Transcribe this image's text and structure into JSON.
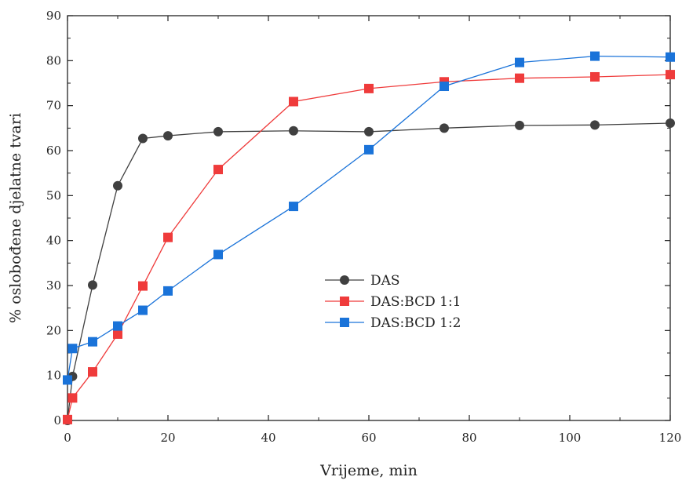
{
  "chart_data": {
    "type": "line",
    "title": "",
    "xlabel": "Vrijeme, min",
    "ylabel": "% oslobođene djelatne tvari",
    "xlim": [
      0,
      120
    ],
    "ylim": [
      0,
      90
    ],
    "x_ticks": [
      0,
      20,
      40,
      60,
      80,
      100,
      120
    ],
    "y_ticks": [
      0,
      10,
      20,
      30,
      40,
      50,
      60,
      70,
      80,
      90
    ],
    "grid": false,
    "legend_position": "center",
    "series": [
      {
        "name": "DAS",
        "color": "#404040",
        "marker": "circle",
        "x": [
          0,
          1,
          5,
          10,
          15,
          20,
          30,
          45,
          60,
          75,
          90,
          105,
          120
        ],
        "y": [
          0,
          9.8,
          30.1,
          52.2,
          62.7,
          63.3,
          64.2,
          64.4,
          64.2,
          65.0,
          65.6,
          65.7,
          66.1
        ]
      },
      {
        "name": "DAS:BCD 1:1",
        "color": "#ef3b3b",
        "marker": "square",
        "x": [
          0,
          1,
          5,
          10,
          15,
          20,
          30,
          45,
          60,
          75,
          90,
          105,
          120
        ],
        "y": [
          0.2,
          5.0,
          10.8,
          19.2,
          29.9,
          40.7,
          55.8,
          70.9,
          73.8,
          75.3,
          76.1,
          76.4,
          76.9
        ]
      },
      {
        "name": "DAS:BCD 1:2",
        "color": "#1a73d9",
        "marker": "square",
        "x": [
          0,
          1,
          5,
          10,
          15,
          20,
          30,
          45,
          60,
          75,
          90,
          105,
          120
        ],
        "y": [
          9.0,
          16.0,
          17.5,
          21.0,
          24.5,
          28.8,
          36.9,
          47.6,
          60.2,
          74.3,
          79.6,
          81.0,
          80.8
        ]
      }
    ]
  }
}
